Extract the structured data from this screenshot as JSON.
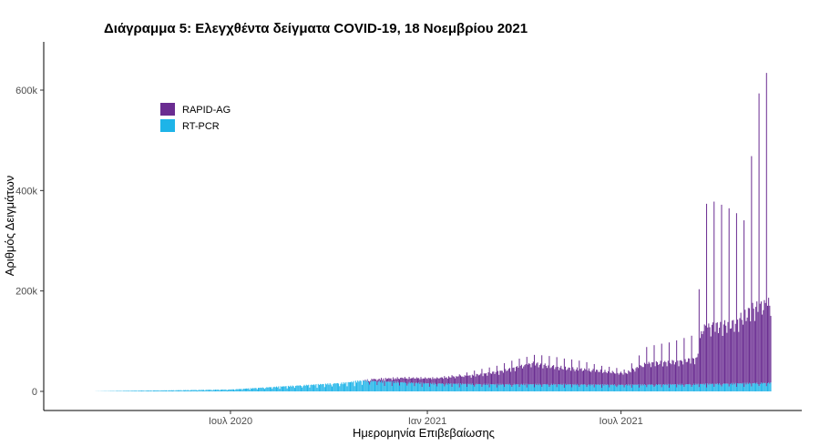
{
  "chart_data": {
    "type": "bar",
    "stacked": true,
    "title": "Διάγραμμα 5: Ελεγχθέντα δείγματα COVID-19, 18 Νοεμβρίου 2021",
    "xlabel": "Ημερομηνία Επιβεβαίωσης",
    "ylabel": "Αριθμός Δειγμάτων",
    "x_range": [
      "2020-02-26",
      "2021-11-18"
    ],
    "ylim": [
      0,
      680000
    ],
    "y_ticks": [
      {
        "value": 0,
        "label": "0"
      },
      {
        "value": 200000,
        "label": "200k"
      },
      {
        "value": 400000,
        "label": "400k"
      },
      {
        "value": 600000,
        "label": "600k"
      }
    ],
    "x_ticks": [
      {
        "date": "2020-07-01",
        "label": "Ιουλ 2020"
      },
      {
        "date": "2021-01-01",
        "label": "Ιαν 2021"
      },
      {
        "date": "2021-07-01",
        "label": "Ιουλ 2021"
      }
    ],
    "grid": false,
    "legend_position": "top-left",
    "series": [
      {
        "name": "RAPID-AG",
        "color": "#6a2c91",
        "weekly_normal_level": [
          [
            "2020-11-01",
            0
          ],
          [
            "2020-11-10",
            4000
          ],
          [
            "2020-12-10",
            10000
          ],
          [
            "2021-01-10",
            12000
          ],
          [
            "2021-02-10",
            18000
          ],
          [
            "2021-03-10",
            28000
          ],
          [
            "2021-04-10",
            45000
          ],
          [
            "2021-05-10",
            35000
          ],
          [
            "2021-06-10",
            30000
          ],
          [
            "2021-07-05",
            25000
          ],
          [
            "2021-07-25",
            45000
          ],
          [
            "2021-08-25",
            50000
          ],
          [
            "2021-09-10",
            55000
          ],
          [
            "2021-09-15",
            120000
          ],
          [
            "2021-10-15",
            130000
          ],
          [
            "2021-11-01",
            160000
          ],
          [
            "2021-11-18",
            170000
          ]
        ],
        "weekly_peak_level": [
          [
            "2020-11-01",
            0
          ],
          [
            "2020-11-10",
            8000
          ],
          [
            "2020-12-10",
            14000
          ],
          [
            "2021-01-10",
            18000
          ],
          [
            "2021-02-10",
            30000
          ],
          [
            "2021-03-10",
            45000
          ],
          [
            "2021-04-10",
            65000
          ],
          [
            "2021-05-10",
            58000
          ],
          [
            "2021-06-10",
            45000
          ],
          [
            "2021-07-05",
            35000
          ],
          [
            "2021-07-25",
            80000
          ],
          [
            "2021-08-25",
            95000
          ],
          [
            "2021-09-10",
            105000
          ],
          [
            "2021-09-15",
            330000
          ],
          [
            "2021-09-20",
            375000
          ],
          [
            "2021-10-15",
            350000
          ],
          [
            "2021-10-25",
            330000
          ],
          [
            "2021-11-01",
            480000
          ],
          [
            "2021-11-08",
            600000
          ],
          [
            "2021-11-18",
            640000
          ]
        ]
      },
      {
        "name": "RT-PCR",
        "color": "#1eb4e8",
        "daily_level": [
          [
            "2020-02-26",
            200
          ],
          [
            "2020-04-01",
            1500
          ],
          [
            "2020-05-15",
            2500
          ],
          [
            "2020-07-01",
            4000
          ],
          [
            "2020-08-15",
            10000
          ],
          [
            "2020-09-15",
            14000
          ],
          [
            "2020-10-15",
            18000
          ],
          [
            "2020-11-01",
            23000
          ],
          [
            "2020-12-01",
            20000
          ],
          [
            "2021-01-01",
            17000
          ],
          [
            "2021-03-01",
            15000
          ],
          [
            "2021-05-01",
            15000
          ],
          [
            "2021-07-01",
            14000
          ],
          [
            "2021-09-01",
            15000
          ],
          [
            "2021-11-18",
            18000
          ]
        ]
      }
    ]
  }
}
